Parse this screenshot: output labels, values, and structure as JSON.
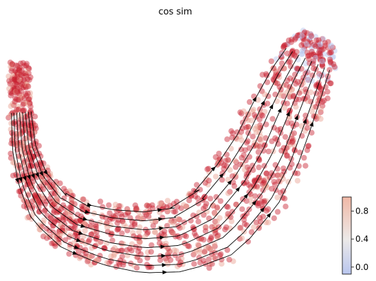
{
  "chart_data": {
    "type": "scatter",
    "title": "cos sim",
    "xlabel": "",
    "ylabel": "",
    "axes_visible": false,
    "grid": false,
    "overlay": "velocity streamlines with arrowheads",
    "colormap": "coolwarm",
    "point_colors": {
      "high": "#c8202e",
      "mid": "#e8a090",
      "low": "#b9c6ee"
    },
    "streamline_color": "#000000",
    "colorbar": {
      "position": "bottom-right",
      "range": [
        -0.1,
        1.0
      ],
      "ticks": [
        {
          "value": 0.0,
          "label": "0.0"
        },
        {
          "value": 0.4,
          "label": "0.4"
        },
        {
          "value": 0.8,
          "label": "0.8"
        }
      ]
    },
    "summary": {
      "dominant_value_range": [
        0.8,
        1.0
      ],
      "low_value_region": "upper-right tip"
    }
  }
}
